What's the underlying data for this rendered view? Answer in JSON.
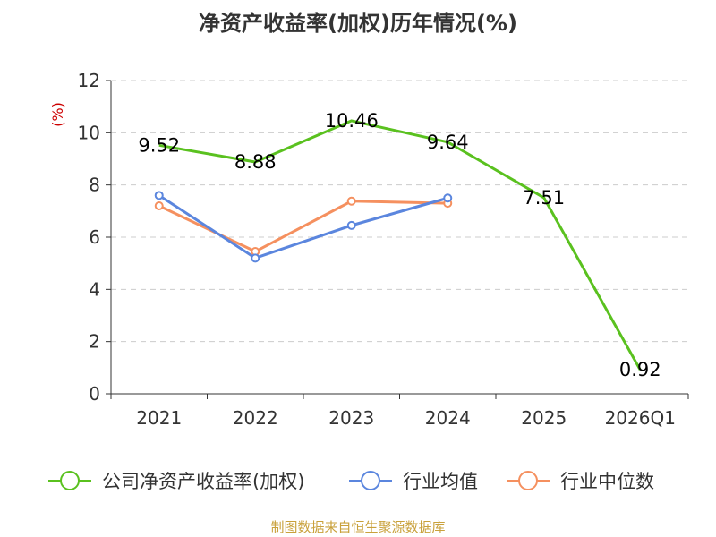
{
  "chart_data": {
    "type": "line",
    "title": "净资产收益率(加权)历年情况(%)",
    "ylabel": "(%)",
    "xlabel": "",
    "categories": [
      "2021",
      "2022",
      "2023",
      "2024",
      "2025",
      "2026Q1"
    ],
    "ylim": [
      0,
      12
    ],
    "yticks": [
      0,
      2,
      4,
      6,
      8,
      10,
      12
    ],
    "grid": true,
    "legend_position": "bottom",
    "series": [
      {
        "name": "公司净资产收益率(加权)",
        "color": "#5ac11f",
        "values": [
          9.52,
          8.88,
          10.46,
          9.64,
          7.51,
          0.92
        ],
        "labels": [
          "9.52",
          "8.88",
          "10.46",
          "9.64",
          "7.51",
          "0.92"
        ],
        "show_markers": false
      },
      {
        "name": "行业均值",
        "color": "#5b86de",
        "values": [
          7.6,
          5.2,
          6.45,
          7.5,
          null,
          null
        ],
        "show_markers": true
      },
      {
        "name": "行业中位数",
        "color": "#f5905f",
        "values": [
          7.2,
          5.45,
          7.38,
          7.3,
          null,
          null
        ],
        "show_markers": true
      }
    ]
  },
  "colors": {
    "unit_label": "#cc0000",
    "source_text": "#c9a13b",
    "axis": "#333333",
    "grid": "#cccccc"
  },
  "footer": {
    "source": "制图数据来自恒生聚源数据库"
  }
}
